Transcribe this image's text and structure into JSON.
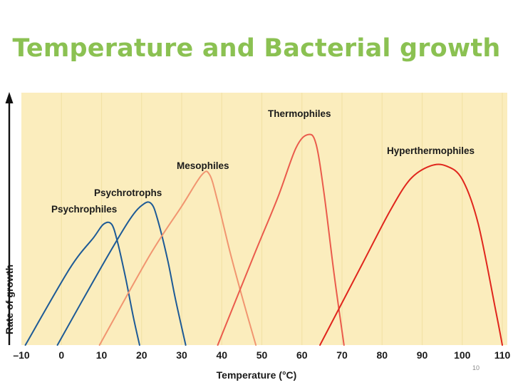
{
  "slide": {
    "title": "Temperature and Bacterial growth",
    "page_number": "10"
  },
  "colors": {
    "title": "#8bc152",
    "plot_bg": "#fbedbd",
    "grid": "#f3e2a7",
    "psychrophiles": "#1d5a96",
    "psychrotrophs": "#1d5a96",
    "mesophiles": "#f19570",
    "thermophiles": "#ea5b4c",
    "hyperthermophiles": "#e0261d"
  },
  "chart_data": {
    "type": "line",
    "title": "",
    "xlabel": "Temperature (°C)",
    "ylabel": "Rate of growth",
    "xlim": [
      -10,
      110
    ],
    "ylim": [
      0,
      100
    ],
    "xticks": [
      "–10",
      "0",
      "10",
      "20",
      "30",
      "40",
      "50",
      "60",
      "70",
      "80",
      "90",
      "100",
      "110"
    ],
    "xtick_values": [
      -10,
      0,
      10,
      20,
      30,
      40,
      50,
      60,
      70,
      80,
      90,
      100,
      110
    ],
    "grid": true,
    "series": [
      {
        "key": "psychrophiles",
        "name": "Psychrophiles",
        "x": [
          -9,
          2,
          8,
          10.5,
          12.5,
          14,
          16,
          18,
          19.5
        ],
        "y": [
          0,
          34,
          48,
          54,
          54,
          46,
          30,
          12,
          0
        ]
      },
      {
        "key": "psychrotrophs",
        "name": "Psychrotrophs",
        "x": [
          -1,
          10,
          17,
          20.5,
          22.5,
          24,
          26.5,
          28.5,
          31
        ],
        "y": [
          0,
          35,
          56,
          63,
          63,
          56,
          38,
          20,
          0
        ]
      },
      {
        "key": "mesophiles",
        "name": "Mesophiles",
        "x": [
          9.5,
          22,
          30,
          35,
          37,
          39,
          42,
          45,
          48.5
        ],
        "y": [
          0,
          40,
          62,
          76,
          76,
          64,
          42,
          22,
          0
        ]
      },
      {
        "key": "thermophiles",
        "name": "Thermophiles",
        "x": [
          39,
          48,
          54,
          58.5,
          61.5,
          63.5,
          65.5,
          68,
          70.5
        ],
        "y": [
          0,
          40,
          66,
          88,
          94,
          90,
          68,
          32,
          0
        ]
      },
      {
        "key": "hyperthermophiles",
        "name": "Hyperthermophiles",
        "x": [
          64.5,
          75,
          82,
          87,
          92,
          96,
          100,
          104,
          108.5,
          110
        ],
        "y": [
          0,
          36,
          60,
          74,
          80,
          80,
          74,
          54,
          14,
          0
        ]
      }
    ]
  }
}
